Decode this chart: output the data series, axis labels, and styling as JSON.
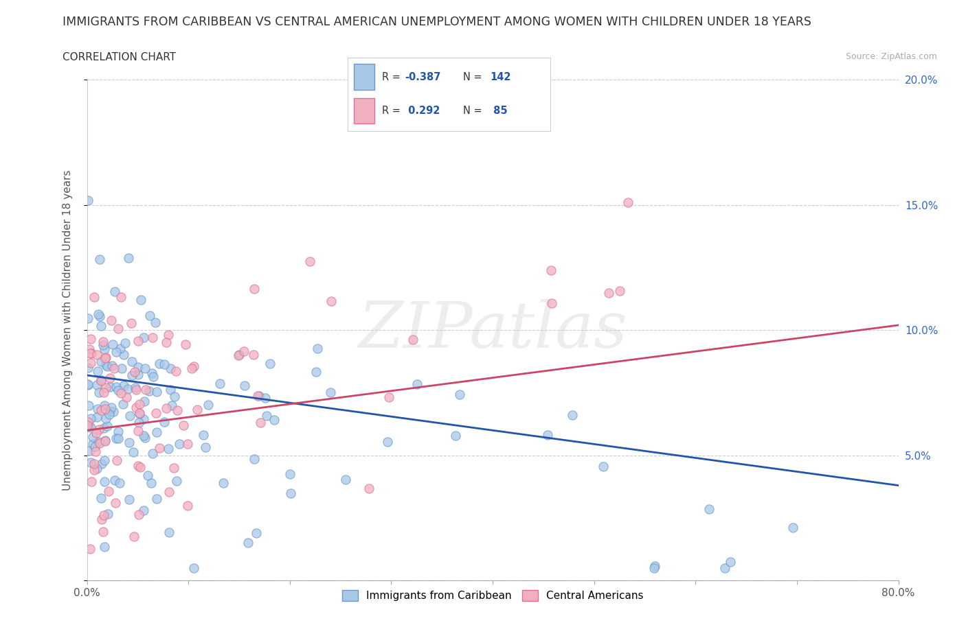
{
  "title": "IMMIGRANTS FROM CARIBBEAN VS CENTRAL AMERICAN UNEMPLOYMENT AMONG WOMEN WITH CHILDREN UNDER 18 YEARS",
  "subtitle": "CORRELATION CHART",
  "source": "Source: ZipAtlas.com",
  "ylabel": "Unemployment Among Women with Children Under 18 years",
  "xlim": [
    0.0,
    0.8
  ],
  "ylim": [
    0.0,
    0.2
  ],
  "xtick_positions": [
    0.0,
    0.1,
    0.2,
    0.3,
    0.4,
    0.5,
    0.6,
    0.7,
    0.8
  ],
  "xticklabels": [
    "0.0%",
    "",
    "",
    "",
    "",
    "",
    "",
    "",
    "80.0%"
  ],
  "ytick_positions": [
    0.0,
    0.05,
    0.1,
    0.15,
    0.2
  ],
  "yticklabels_right": [
    "",
    "5.0%",
    "10.0%",
    "15.0%",
    "20.0%"
  ],
  "blue_R": -0.387,
  "blue_N": 142,
  "pink_R": 0.292,
  "pink_N": 85,
  "blue_scatter_color": "#a8c8e8",
  "pink_scatter_color": "#f0b0c0",
  "blue_edge_color": "#6699cc",
  "pink_edge_color": "#e07090",
  "blue_line_color": "#2255aa",
  "pink_line_color": "#cc4466",
  "legend_label_blue": "Immigrants from Caribbean",
  "legend_label_pink": "Central Americans",
  "watermark": "ZIPatlas",
  "background_color": "#ffffff",
  "grid_color": "#cccccc",
  "title_fontsize": 12.5,
  "subtitle_fontsize": 11,
  "axis_label_fontsize": 11,
  "tick_fontsize": 11,
  "legend_fontsize": 11,
  "blue_trend_start_y": 0.082,
  "blue_trend_end_y": 0.038,
  "pink_trend_start_y": 0.06,
  "pink_trend_end_y": 0.102
}
